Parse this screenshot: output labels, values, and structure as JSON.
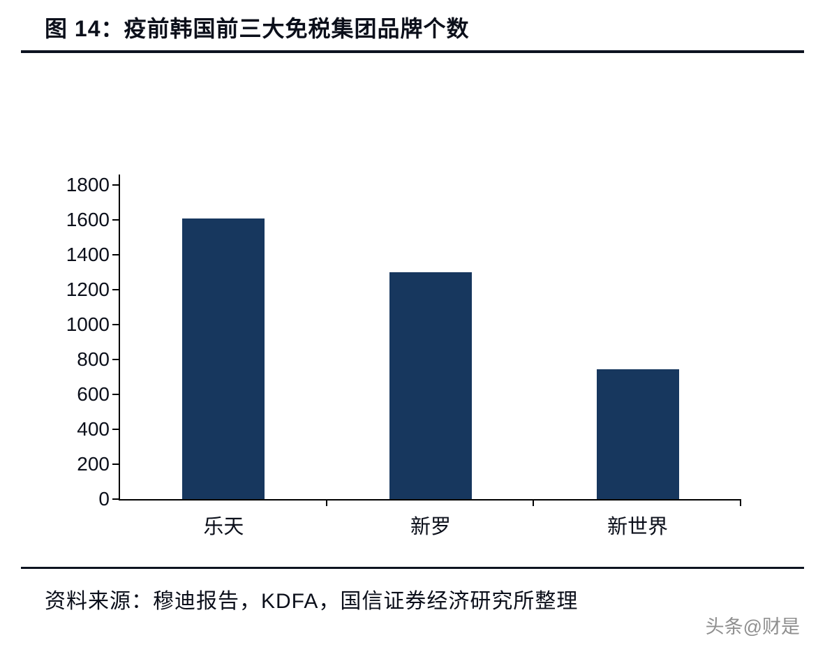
{
  "figure": {
    "title": "图 14：疫前韩国前三大免税集团品牌个数",
    "source": "资料来源：穆迪报告，KDFA，国信证券经济研究所整理",
    "watermark": "头条@财是"
  },
  "colors": {
    "bar": "#17375E",
    "axis": "#000000",
    "rule": "#0d1320",
    "text": "#0b0f1a",
    "watermark": "#8f8f8f"
  },
  "chart_data": {
    "type": "bar",
    "title": "疫前韩国前三大免税集团品牌个数",
    "categories": [
      "乐天",
      "新罗",
      "新世界"
    ],
    "values": [
      1610,
      1300,
      745
    ],
    "xlabel": "",
    "ylabel": "",
    "ylim": [
      0,
      1800
    ],
    "yticks": [
      0,
      200,
      400,
      600,
      800,
      1000,
      1200,
      1400,
      1600,
      1800
    ],
    "grid": false,
    "legend": "none",
    "bar_color": "#17375E"
  }
}
